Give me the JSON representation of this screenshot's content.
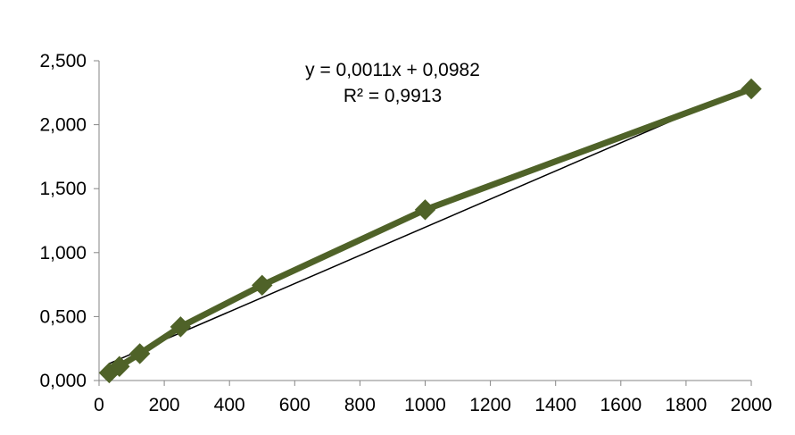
{
  "chart_data": {
    "type": "scatter",
    "title": "",
    "xlabel": "",
    "ylabel": "",
    "xlim": [
      0,
      2000
    ],
    "ylim": [
      0,
      2.5
    ],
    "x_ticks": [
      0,
      200,
      400,
      600,
      800,
      1000,
      1200,
      1400,
      1600,
      1800,
      2000
    ],
    "x_tick_labels": [
      "0",
      "200",
      "400",
      "600",
      "800",
      "1000",
      "1200",
      "1400",
      "1600",
      "1800",
      "2000"
    ],
    "y_ticks": [
      0,
      0.5,
      1,
      1.5,
      2,
      2.5
    ],
    "y_tick_labels": [
      "0,000",
      "0,500",
      "1,000",
      "1,500",
      "2,000",
      "2,500"
    ],
    "grid": false,
    "series": [
      {
        "x": [
          31.25,
          62.5,
          125,
          250,
          500,
          1000,
          2000
        ],
        "y": [
          0.06,
          0.11,
          0.21,
          0.42,
          0.745,
          1.335,
          2.28
        ],
        "color": "#4f6228",
        "marker": "diamond"
      }
    ],
    "trendline": {
      "kind": "linear",
      "slope": 0.0011,
      "intercept": 0.0982,
      "color": "#000000",
      "equation_label": "y = 0,0011x + 0,0982",
      "r2_label": "R² = 0,9913"
    }
  }
}
